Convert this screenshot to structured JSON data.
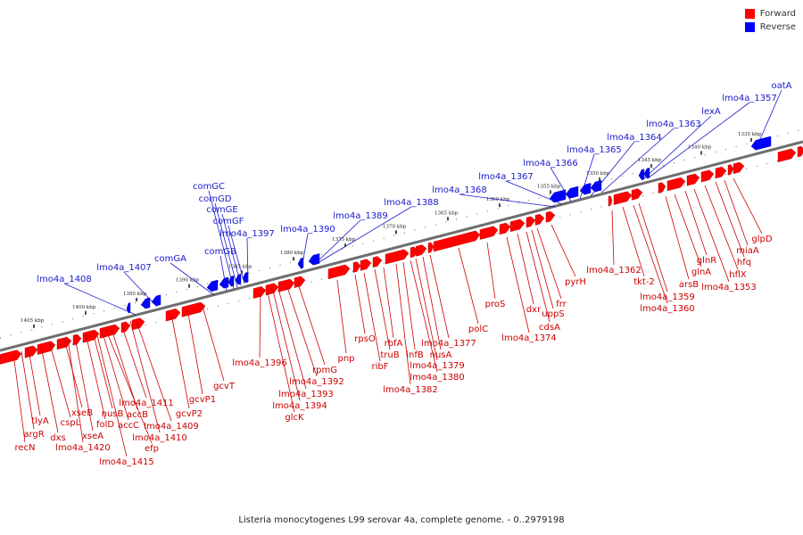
{
  "legend": {
    "forward": {
      "label": "Forward",
      "color": "#ff0000"
    },
    "reverse": {
      "label": "Reverse",
      "color": "#0000ff"
    }
  },
  "caption": "Listeria monocytogenes L99 serovar 4a, complete genome. - 0..2979198",
  "colors": {
    "forward_label": "#cc0000",
    "reverse_label": "#1a1acc",
    "axis": "#808080"
  },
  "ticks": [
    "1405 kbp",
    "1400 kbp",
    "1395 kbp",
    "1390 kbp",
    "1385 kbp",
    "1380 kbp",
    "1375 kbp",
    "1370 kbp",
    "1365 kbp",
    "1360 kbp",
    "1355 kbp",
    "1350 kbp",
    "1345 kbp",
    "1340 kbp",
    "1335 kbp"
  ],
  "reverse_genes": [
    "lmo4a_1408",
    "lmo4a_1407",
    "comGA",
    "comGB",
    "comGC",
    "comGD",
    "comGE",
    "comGF",
    "lmo4a_1397",
    "lmo4a_1390",
    "lmo4a_1389",
    "lmo4a_1388",
    "lmo4a_1368",
    "lmo4a_1367",
    "lmo4a_1366",
    "lmo4a_1365",
    "lmo4a_1364",
    "lmo4a_1363",
    "lexA",
    "lmo4a_1357",
    "oatA"
  ],
  "forward_genes": [
    "recN",
    "argR",
    "tlyA",
    "dxs",
    "cspL",
    "xseB",
    "xseA",
    "lmo4a_1420",
    "folD",
    "nusB",
    "accC",
    "accB",
    "lmo4a_1415",
    "lmo4a_1411",
    "efp",
    "lmo4a_1410",
    "lmo4a_1409",
    "gcvP2",
    "gcvP1",
    "gcvT",
    "lmo4a_1396",
    "glcK",
    "lmo4a_1394",
    "lmo4a_1393",
    "lmo4a_1392",
    "rpmG",
    "pnp",
    "rpsO",
    "ribF",
    "truB",
    "rbfA",
    "lmo4a_1382",
    "infB",
    "lmo4a_1380",
    "lmo4a_1379",
    "nusA",
    "lmo4a_1377",
    "polC",
    "proS",
    "lmo4a_1374",
    "dxr",
    "uppS",
    "cdsA",
    "frr",
    "pyrH",
    "lmo4a_1362",
    "tkt-2",
    "lmo4a_1360",
    "lmo4a_1359",
    "arsB",
    "glnA",
    "glnR",
    "lmo4a_1353",
    "hflX",
    "hfq",
    "miaA",
    "glpD"
  ]
}
